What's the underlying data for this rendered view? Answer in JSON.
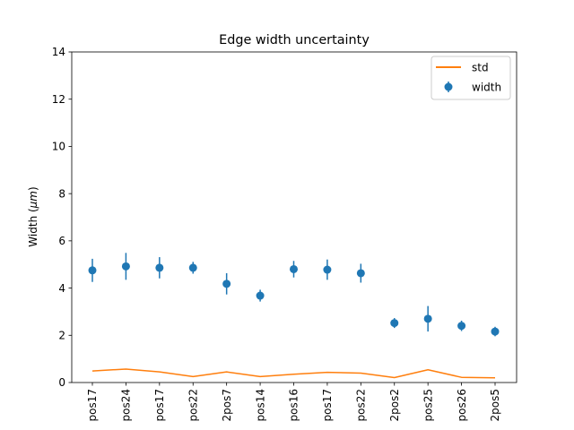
{
  "chart_data": {
    "type": "scatter",
    "title": "Edge width uncertainty",
    "xlabel": "",
    "ylabel": "Width (μm)",
    "ylabel_prefix": "Width (",
    "ylabel_unit": "μm",
    "ylabel_suffix": ")",
    "ylim": [
      0,
      14
    ],
    "yticks": [
      0,
      2,
      4,
      6,
      8,
      10,
      12,
      14
    ],
    "grid": false,
    "legend_position": "upper-right",
    "categories": [
      "pos17",
      "pos24",
      "pos17",
      "pos22",
      "2pos7",
      "pos14",
      "pos16",
      "pos17",
      "pos22",
      "2pos2",
      "pos25",
      "pos26",
      "2pos5"
    ],
    "series": [
      {
        "name": "width",
        "kind": "errorbar",
        "color": "#1f77b4",
        "values": [
          4.75,
          4.92,
          4.86,
          4.86,
          4.18,
          3.68,
          4.8,
          4.78,
          4.63,
          2.52,
          2.7,
          2.4,
          2.16
        ],
        "errors": [
          0.49,
          0.57,
          0.45,
          0.25,
          0.45,
          0.25,
          0.35,
          0.43,
          0.4,
          0.21,
          0.54,
          0.22,
          0.2
        ]
      },
      {
        "name": "std",
        "kind": "line",
        "color": "#ff7f0e",
        "values": [
          0.49,
          0.57,
          0.45,
          0.25,
          0.45,
          0.25,
          0.35,
          0.43,
          0.4,
          0.21,
          0.54,
          0.22,
          0.2
        ]
      }
    ]
  }
}
